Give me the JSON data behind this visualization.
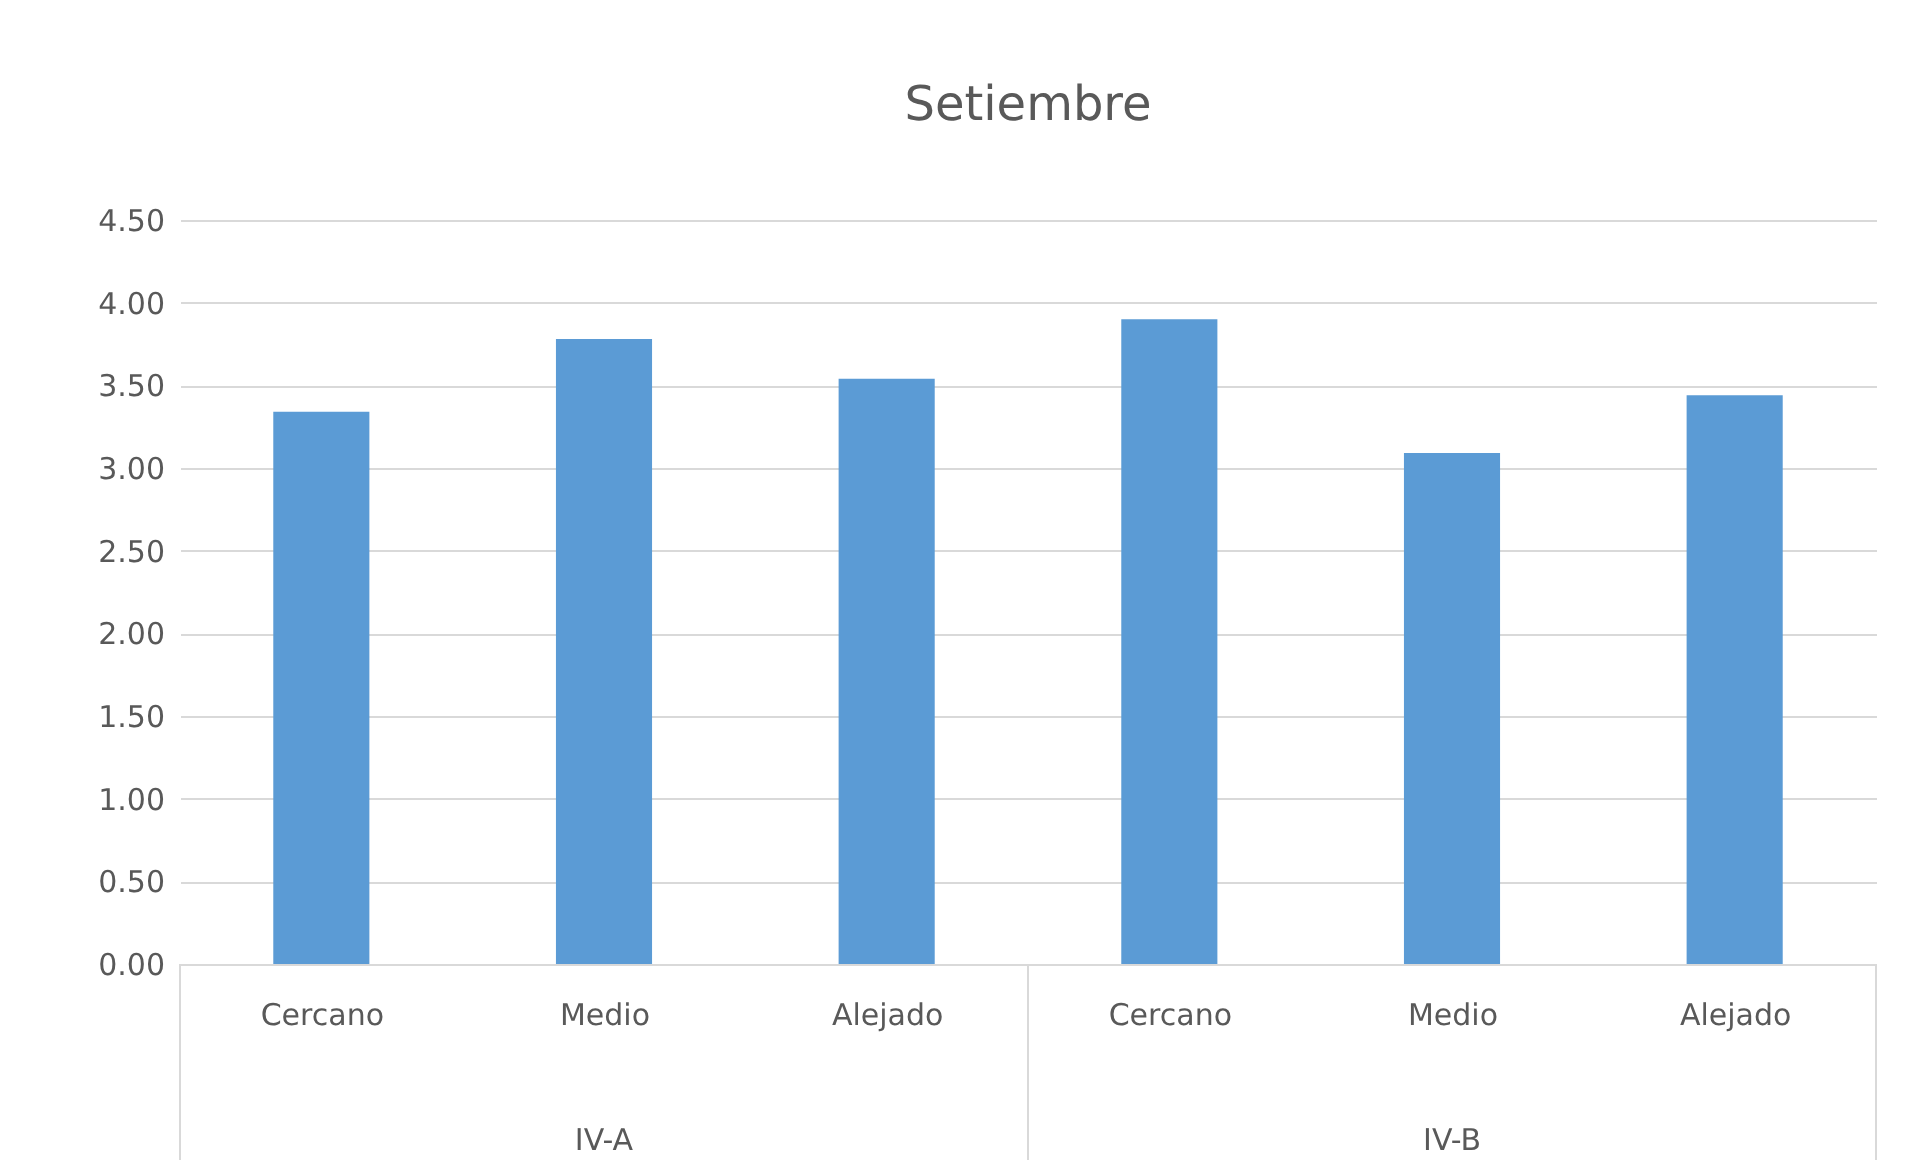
{
  "chart_data": {
    "type": "bar",
    "title": "Setiembre",
    "categories": [
      "Cercano",
      "Medio",
      "Alejado",
      "Cercano",
      "Medio",
      "Alejado"
    ],
    "values": [
      3.34,
      3.78,
      3.54,
      3.9,
      3.09,
      3.44
    ],
    "color": "#5b9bd5",
    "ylim": [
      0,
      4.5
    ],
    "yticks": [
      {
        "value": 0,
        "label": "0.00"
      },
      {
        "value": 0.5,
        "label": "0.50"
      },
      {
        "value": 1,
        "label": "1.00"
      },
      {
        "value": 1.5,
        "label": "1.50"
      },
      {
        "value": 2,
        "label": "2.00"
      },
      {
        "value": 2.5,
        "label": "2.50"
      },
      {
        "value": 3,
        "label": "3.00"
      },
      {
        "value": 3.5,
        "label": "3.50"
      },
      {
        "value": 4,
        "label": "4.00"
      },
      {
        "value": 4.5,
        "label": "4.50"
      }
    ],
    "grid": "y",
    "annotations": [
      "IV-A",
      "IV-B"
    ]
  }
}
